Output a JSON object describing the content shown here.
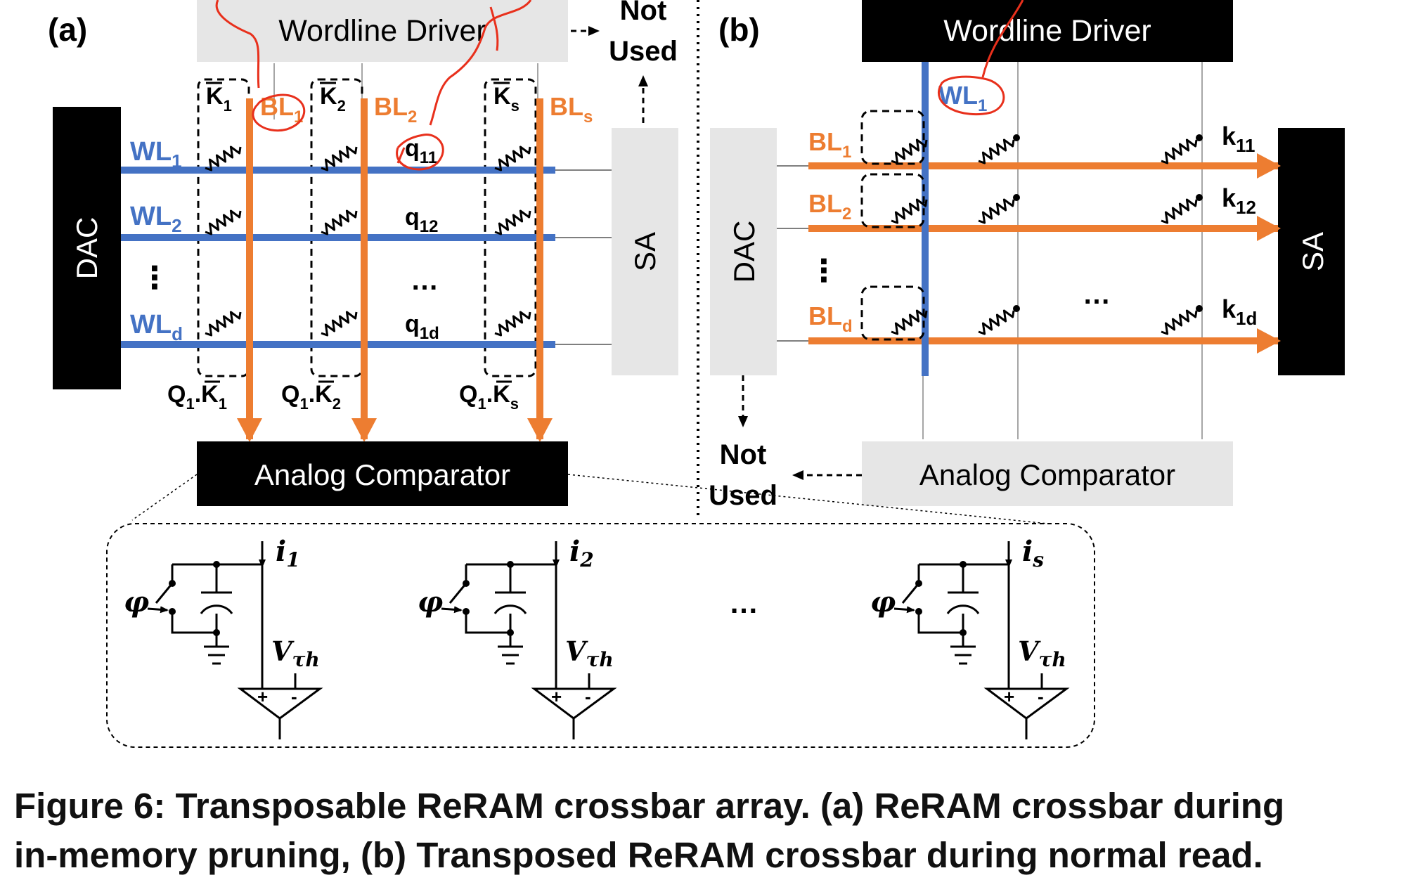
{
  "panel_a": {
    "tag": "(a)",
    "wordline_driver": "Wordline Driver",
    "not_used_top": [
      "Not",
      "Used"
    ],
    "dac": "DAC",
    "sa": "SA",
    "analog_comparator": "Analog Comparator",
    "word_lines": [
      {
        "base": "WL",
        "sub": "1"
      },
      {
        "base": "WL",
        "sub": "2"
      },
      {
        "base": "WL",
        "sub": "d"
      }
    ],
    "keys": [
      {
        "base": "K",
        "sub": "1"
      },
      {
        "base": "K",
        "sub": "2"
      },
      {
        "base": "K",
        "sub": "s"
      }
    ],
    "bit_lines": [
      {
        "base": "BL",
        "sub": "1"
      },
      {
        "base": "BL",
        "sub": "2"
      },
      {
        "base": "BL",
        "sub": "s"
      }
    ],
    "queries": [
      {
        "base": "q",
        "sub": "11"
      },
      {
        "base": "q",
        "sub": "12"
      },
      {
        "base": "q",
        "sub": "1d"
      }
    ],
    "products": [
      {
        "a": "Q",
        "asub": "1",
        "b": ".K",
        "bsub": "1"
      },
      {
        "a": "Q",
        "asub": "1",
        "b": ".K",
        "bsub": "2"
      },
      {
        "a": "Q",
        "asub": "1",
        "b": ".K",
        "bsub": "s"
      }
    ],
    "row_ellipsis": "⋮",
    "col_ellipsis": "…"
  },
  "panel_b": {
    "tag": "(b)",
    "wordline_driver": "Wordline Driver",
    "dac": "DAC",
    "sa": "SA",
    "analog_comparator": "Analog Comparator",
    "not_used_bottom": [
      "Not",
      "Used"
    ],
    "word_line": {
      "base": "WL",
      "sub": "1"
    },
    "bit_lines": [
      {
        "base": "BL",
        "sub": "1"
      },
      {
        "base": "BL",
        "sub": "2"
      },
      {
        "base": "BL",
        "sub": "d"
      }
    ],
    "keys": [
      {
        "base": "k",
        "sub": "11"
      },
      {
        "base": "k",
        "sub": "12"
      },
      {
        "base": "k",
        "sub": "1d"
      }
    ],
    "row_ellipsis": "⋮",
    "col_ellipsis": "…"
  },
  "comparator_detail": {
    "currents": [
      {
        "base": "i",
        "sub": "1"
      },
      {
        "base": "i",
        "sub": "2"
      },
      {
        "base": "i",
        "sub": "s"
      }
    ],
    "switch": "φ",
    "threshold": {
      "base": "V",
      "sub": "τh"
    },
    "plus": "+",
    "minus": "-",
    "ellipsis": "…"
  },
  "caption": {
    "line1": "Figure 6: Transposable ReRAM crossbar array. (a) ReRAM crossbar during",
    "line2": "in-memory pruning, (b) Transposed ReRAM crossbar during normal read."
  },
  "colors": {
    "blue": "#4472C4",
    "orange": "#ED7D31",
    "red": "#E8301C",
    "gray": "#E6E6E6",
    "black": "#000000"
  }
}
